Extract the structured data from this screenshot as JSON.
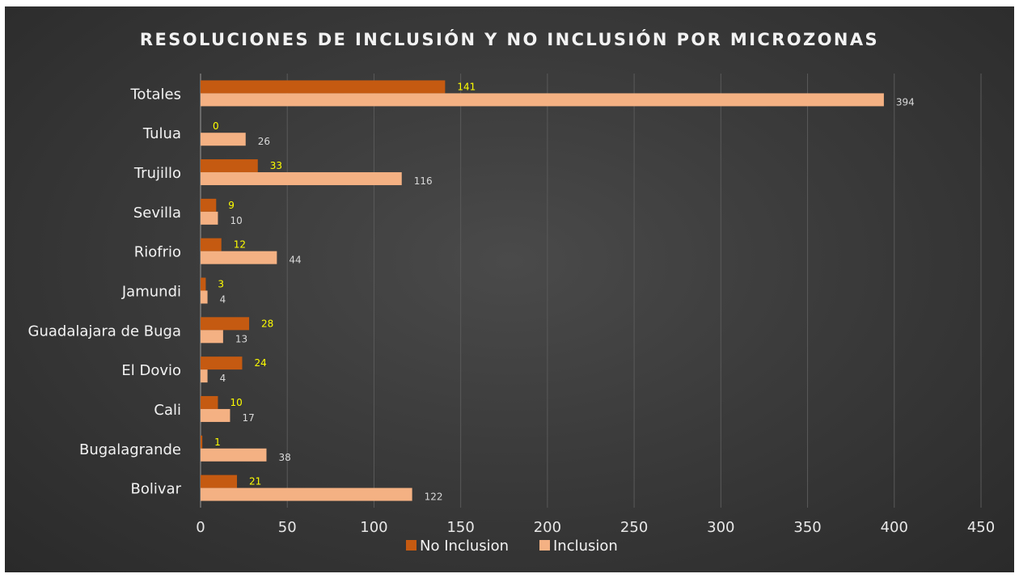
{
  "chart_data": {
    "type": "bar",
    "orientation": "horizontal",
    "title": "RESOLUCIONES DE INCLUSIÓN Y NO INCLUSIÓN POR MICROZONAS",
    "xlabel": "",
    "ylabel": "",
    "xlim": [
      0,
      450
    ],
    "x_ticks": [
      "0",
      "50",
      "100",
      "150",
      "200",
      "250",
      "300",
      "350",
      "400",
      "450"
    ],
    "categories": [
      "Bolivar",
      "Bugalagrande",
      "Cali",
      "El Dovio",
      "Guadalajara de Buga",
      "Jamundi",
      "Riofrio",
      "Sevilla",
      "Trujillo",
      "Tulua",
      "Totales"
    ],
    "series": [
      {
        "name": "No Inclusion",
        "color": "#c55a11",
        "values": [
          21,
          1,
          10,
          24,
          28,
          3,
          12,
          9,
          33,
          0,
          141
        ]
      },
      {
        "name": "Inclusion",
        "color": "#f4b183",
        "values": [
          122,
          38,
          17,
          4,
          13,
          4,
          44,
          10,
          116,
          26,
          394
        ]
      }
    ],
    "data_label_colors": {
      "No Inclusion": "#ffff00",
      "Inclusion": "#d9d9d9"
    },
    "grid": "vertical",
    "legend": "bottom"
  }
}
